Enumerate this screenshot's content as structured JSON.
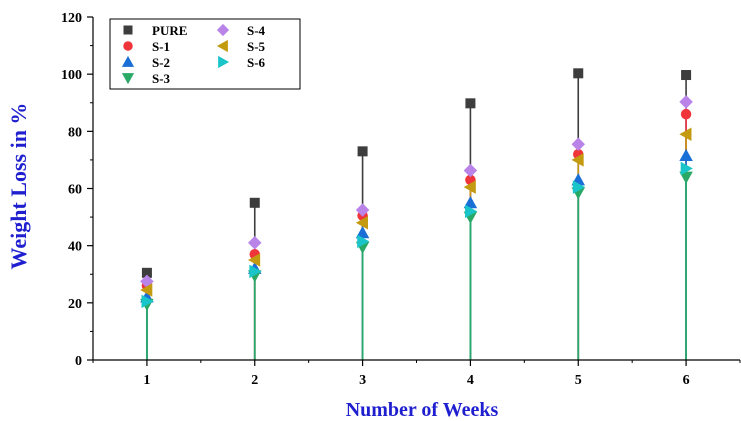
{
  "chart_data": {
    "type": "scatter",
    "title": "",
    "xlabel": "Number of Weeks",
    "ylabel": "Weight Loss in %",
    "categories": [
      "1",
      "2",
      "3",
      "4",
      "5",
      "6"
    ],
    "x": [
      1,
      2,
      3,
      4,
      5,
      6
    ],
    "xlim": [
      0.5,
      6.5
    ],
    "ylim": [
      0,
      120
    ],
    "yticks": [
      0,
      20,
      40,
      60,
      80,
      100,
      120
    ],
    "grid": false,
    "legend_position": "top-left",
    "series": [
      {
        "name": "PURE",
        "marker": "square",
        "color": "#3d3d3d",
        "values": [
          30.5,
          55,
          73,
          89.8,
          100.3,
          99.7
        ]
      },
      {
        "name": "S-1",
        "marker": "circle",
        "color": "#f0353a",
        "values": [
          26,
          37,
          50.5,
          63,
          72,
          86
        ]
      },
      {
        "name": "S-2",
        "marker": "triangle-up",
        "color": "#1a6fd6",
        "values": [
          22,
          32,
          44.5,
          55,
          63,
          71.5
        ]
      },
      {
        "name": "S-3",
        "marker": "triangle-down",
        "color": "#2aa865",
        "values": [
          19.5,
          29.5,
          39.5,
          50,
          58.5,
          64
        ]
      },
      {
        "name": "S-4",
        "marker": "diamond",
        "color": "#b983e8",
        "values": [
          27.5,
          41,
          52.5,
          66.3,
          75.5,
          90.3
        ]
      },
      {
        "name": "S-5",
        "marker": "triangle-left",
        "color": "#c49a10",
        "values": [
          24.5,
          35,
          48,
          60.5,
          70,
          79
        ]
      },
      {
        "name": "S-6",
        "marker": "triangle-right",
        "color": "#19c5c9",
        "values": [
          20.5,
          31,
          41.5,
          52,
          60.5,
          67
        ]
      }
    ]
  }
}
